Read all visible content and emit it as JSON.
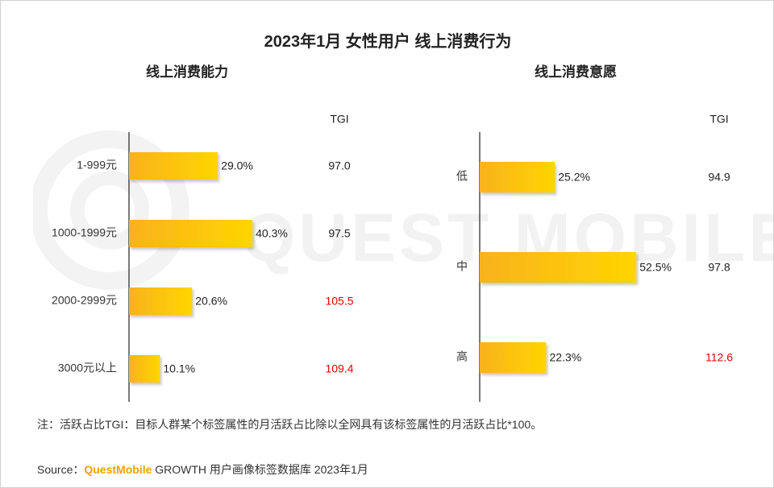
{
  "title": "2023年1月 女性用户 线上消费行为",
  "watermark": "QUEST MOBILE",
  "chart_data": [
    {
      "type": "bar",
      "orientation": "horizontal",
      "title": "线上消费能力",
      "tgi_header": "TGI",
      "categories": [
        "1-999元",
        "1000-1999元",
        "2000-2999元",
        "3000元以上"
      ],
      "values": [
        29.0,
        40.3,
        20.6,
        10.1
      ],
      "value_labels": [
        "29.0%",
        "40.3%",
        "20.6%",
        "10.1%"
      ],
      "tgi": [
        "97.0",
        "97.5",
        "105.5",
        "109.4"
      ],
      "tgi_highlight": [
        false,
        false,
        true,
        true
      ],
      "unit": "%"
    },
    {
      "type": "bar",
      "orientation": "horizontal",
      "title": "线上消费意愿",
      "tgi_header": "TGI",
      "categories": [
        "低",
        "中",
        "高"
      ],
      "values": [
        25.2,
        52.5,
        22.3
      ],
      "value_labels": [
        "25.2%",
        "52.5%",
        "22.3%"
      ],
      "tgi": [
        "94.9",
        "97.8",
        "112.6"
      ],
      "tgi_highlight": [
        false,
        false,
        true
      ],
      "unit": "%"
    }
  ],
  "colors": {
    "bar_start": "#f9b21c",
    "bar_end": "#ffd500",
    "tgi_highlight": "#e60000",
    "tgi_normal": "#222222"
  },
  "note": "注：活跃占比TGI：目标人群某个标签属性的月活跃占比除以全网具有该标签属性的月活跃占比*100。",
  "source": {
    "prefix": "Source：",
    "brand": "QuestMobile",
    "rest": " GROWTH 用户画像标签数据库 2023年1月"
  }
}
